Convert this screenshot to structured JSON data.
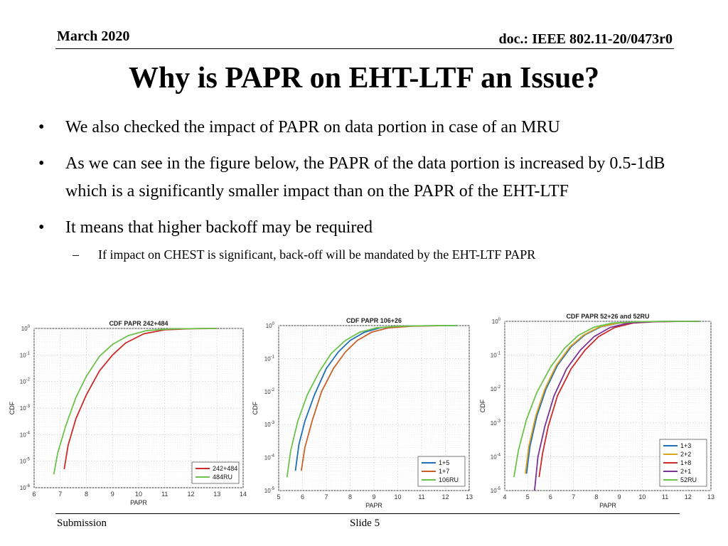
{
  "header": {
    "date": "March 2020",
    "doc": "doc.: IEEE 802.11-20/0473r0"
  },
  "title": "Why is PAPR on EHT-LTF an Issue?",
  "bullets": [
    "We also checked the impact of PAPR on data portion in case of an MRU",
    "As we can see in the figure below, the PAPR of the data portion is increased by 0.5-1dB which is a significantly smaller impact than on the PAPR of the EHT-LTF",
    "It means that higher backoff may be required"
  ],
  "sub_bullet": "If impact on CHEST is significant, back-off will be mandated by the EHT-LTF PAPR",
  "footer": {
    "left": "Submission",
    "center": "Slide 5"
  },
  "colors": {
    "blue": "#1f6fb5",
    "orange": "#c8622a",
    "red": "#cc2929",
    "purple": "#7b3296",
    "green": "#6cc24a",
    "grid": "#cfcfcf"
  },
  "chart_data": [
    {
      "type": "line",
      "title": "CDF PAPR 242+484",
      "xlabel": "PAPR",
      "ylabel": "CDF",
      "xlim": [
        6,
        14
      ],
      "ylim_log10": [
        -6,
        0
      ],
      "xticks": [
        6,
        7,
        8,
        9,
        10,
        11,
        12,
        13,
        14
      ],
      "yticks": [
        "10^0",
        "10^-1",
        "10^-2",
        "10^-3",
        "10^-4",
        "10^-5",
        "10^-6"
      ],
      "legend_position": "bottom-right",
      "series": [
        {
          "name": "242+484",
          "color": "#cc2929",
          "x": [
            7.15,
            7.3,
            7.6,
            8.0,
            8.5,
            9.0,
            9.5,
            10.2,
            11.0,
            12.0,
            13.0
          ],
          "log10_cdf": [
            -5.3,
            -4.4,
            -3.4,
            -2.5,
            -1.6,
            -1.0,
            -0.55,
            -0.2,
            -0.05,
            -0.01,
            0.0
          ]
        },
        {
          "name": "484RU",
          "color": "#6cc24a",
          "x": [
            6.75,
            6.9,
            7.2,
            7.6,
            8.0,
            8.5,
            9.0,
            9.6,
            10.3,
            11.2,
            12.5,
            13.0
          ],
          "log10_cdf": [
            -5.5,
            -4.7,
            -3.7,
            -2.6,
            -1.8,
            -1.05,
            -0.6,
            -0.27,
            -0.08,
            -0.02,
            0.0,
            0.0
          ]
        }
      ]
    },
    {
      "type": "line",
      "title": "CDF PAPR 106+26",
      "xlabel": "PAPR",
      "ylabel": "CDF",
      "xlim": [
        5,
        13
      ],
      "ylim_log10": [
        -5,
        0
      ],
      "xticks": [
        5,
        6,
        7,
        8,
        9,
        10,
        11,
        12,
        13
      ],
      "yticks": [
        "10^0",
        "10^-1",
        "10^-2",
        "10^-3",
        "10^-4",
        "10^-5"
      ],
      "legend_position": "bottom-right",
      "series": [
        {
          "name": "1+5",
          "color": "#1f6fb5",
          "x": [
            5.7,
            5.85,
            6.1,
            6.5,
            7.0,
            7.5,
            8.0,
            8.6,
            9.3,
            10.5,
            12.0,
            12.5
          ],
          "log10_cdf": [
            -4.4,
            -3.6,
            -2.9,
            -2.1,
            -1.3,
            -0.8,
            -0.45,
            -0.2,
            -0.06,
            -0.01,
            0.0,
            0.0
          ]
        },
        {
          "name": "1+7",
          "color": "#c8622a",
          "x": [
            5.95,
            6.1,
            6.4,
            6.8,
            7.3,
            7.8,
            8.3,
            8.9,
            9.6,
            10.6,
            12.0
          ],
          "log10_cdf": [
            -4.4,
            -3.7,
            -2.9,
            -2.0,
            -1.3,
            -0.8,
            -0.45,
            -0.2,
            -0.07,
            -0.02,
            0.0
          ]
        },
        {
          "name": "106RU",
          "color": "#6cc24a",
          "x": [
            5.35,
            5.5,
            5.8,
            6.2,
            6.7,
            7.2,
            7.8,
            8.4,
            9.1,
            10.0,
            11.5,
            12.5
          ],
          "log10_cdf": [
            -4.6,
            -3.8,
            -2.9,
            -2.1,
            -1.4,
            -0.85,
            -0.45,
            -0.2,
            -0.07,
            -0.02,
            0.0,
            0.0
          ]
        }
      ]
    },
    {
      "type": "line",
      "title": "CDF PAPR 52+26 and 52RU",
      "xlabel": "PAPR",
      "ylabel": "CDF",
      "xlim": [
        4,
        13
      ],
      "ylim_log10": [
        -5,
        0
      ],
      "xticks": [
        4,
        5,
        6,
        7,
        8,
        9,
        10,
        11,
        12,
        13
      ],
      "yticks": [
        "10^0",
        "10^-1",
        "10^-2",
        "10^-3",
        "10^-4",
        "10^-5"
      ],
      "legend_position": "bottom-right",
      "series": [
        {
          "name": "1+3",
          "color": "#1f6fb5",
          "x": [
            4.95,
            5.1,
            5.4,
            5.8,
            6.3,
            6.9,
            7.5,
            8.2,
            9.0,
            10.0,
            11.5,
            12.5
          ],
          "log10_cdf": [
            -4.5,
            -3.7,
            -2.8,
            -2.0,
            -1.3,
            -0.75,
            -0.4,
            -0.16,
            -0.05,
            -0.01,
            0.0,
            0.0
          ]
        },
        {
          "name": "2+2",
          "color": "#e0a020",
          "x": [
            4.9,
            5.05,
            5.35,
            5.75,
            6.25,
            6.85,
            7.45,
            8.15,
            8.95,
            10.0,
            11.5,
            12.5
          ],
          "log10_cdf": [
            -4.5,
            -3.7,
            -2.8,
            -2.0,
            -1.3,
            -0.75,
            -0.4,
            -0.16,
            -0.05,
            -0.01,
            0.0,
            0.0
          ]
        },
        {
          "name": "1+8",
          "color": "#cc2929",
          "x": [
            5.5,
            5.65,
            5.9,
            6.3,
            6.9,
            7.5,
            8.1,
            8.8,
            9.6,
            10.6,
            12.0,
            12.5
          ],
          "log10_cdf": [
            -4.6,
            -3.9,
            -3.1,
            -2.2,
            -1.4,
            -0.85,
            -0.45,
            -0.18,
            -0.05,
            -0.01,
            0.0,
            0.0
          ]
        },
        {
          "name": "2+1",
          "color": "#7b3296",
          "x": [
            5.3,
            5.45,
            5.75,
            6.15,
            6.7,
            7.3,
            7.9,
            8.6,
            9.4,
            10.4,
            11.8,
            12.5
          ],
          "log10_cdf": [
            -5.0,
            -4.0,
            -3.1,
            -2.2,
            -1.4,
            -0.85,
            -0.45,
            -0.18,
            -0.05,
            -0.01,
            0.0,
            0.0
          ]
        },
        {
          "name": "52RU",
          "color": "#6cc24a",
          "x": [
            4.4,
            4.6,
            4.95,
            5.4,
            6.0,
            6.6,
            7.2,
            7.9,
            8.7,
            9.8,
            11.0,
            12.5
          ],
          "log10_cdf": [
            -4.6,
            -3.8,
            -2.9,
            -2.1,
            -1.35,
            -0.8,
            -0.42,
            -0.17,
            -0.05,
            -0.01,
            0.0,
            0.0
          ]
        }
      ]
    }
  ]
}
